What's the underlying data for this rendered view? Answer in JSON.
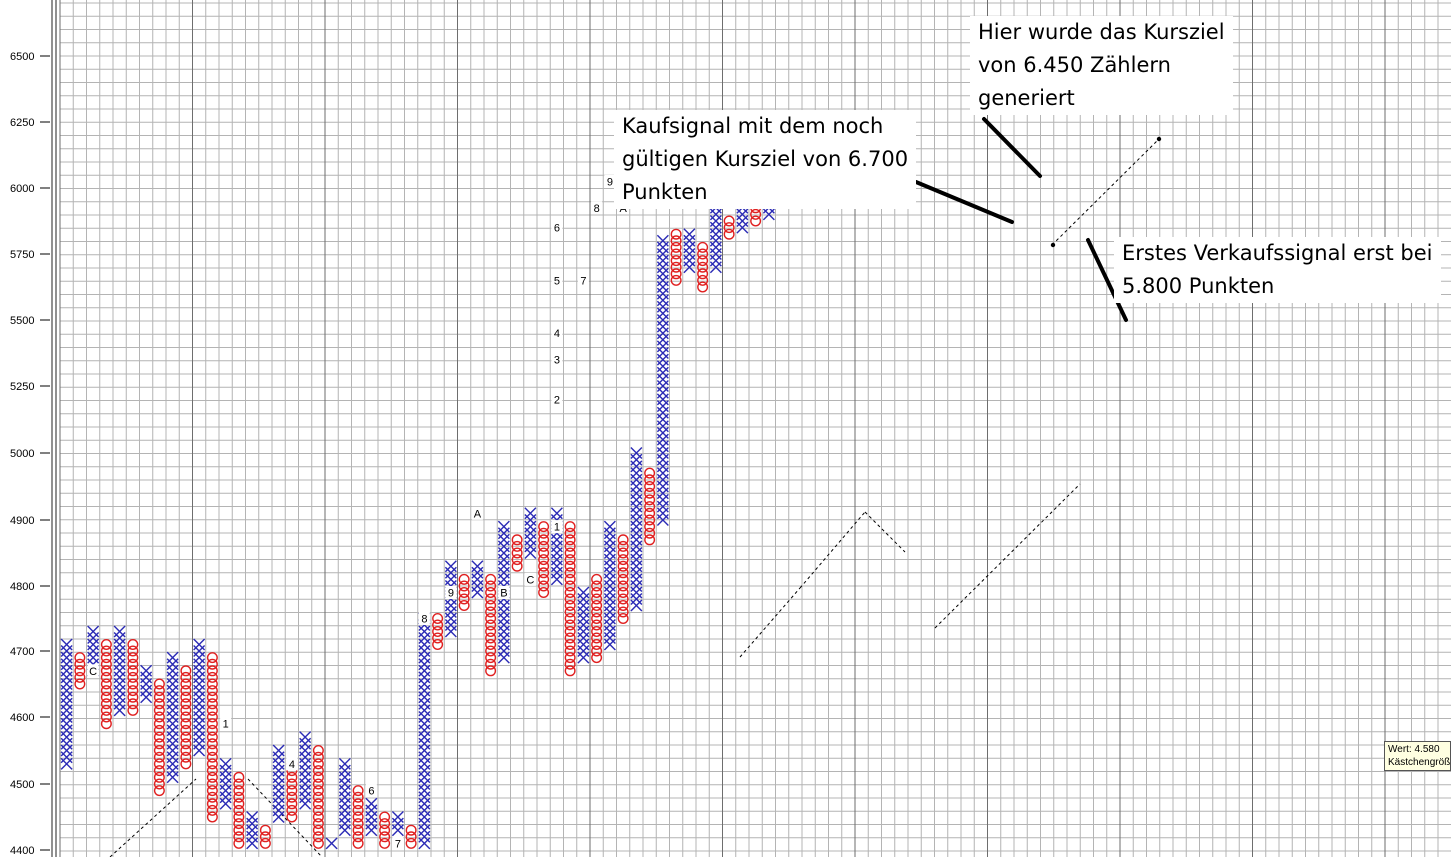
{
  "chart_data": {
    "type": "point-and-figure",
    "y_ticks": [
      "6500",
      "6250",
      "6000",
      "5750",
      "5500",
      "5250",
      "5000",
      "4900",
      "4800",
      "4700",
      "4600",
      "4500",
      "4400"
    ],
    "columns": [
      {
        "t": "X",
        "lo": 4530,
        "hi": 4710
      },
      {
        "t": "O",
        "lo": 4650,
        "hi": 4690
      },
      {
        "t": "X",
        "lo": 4670,
        "hi": 4730
      },
      {
        "t": "O",
        "lo": 4590,
        "hi": 4710
      },
      {
        "t": "X",
        "lo": 4610,
        "hi": 4730
      },
      {
        "t": "O",
        "lo": 4610,
        "hi": 4710
      },
      {
        "t": "X",
        "lo": 4630,
        "hi": 4670
      },
      {
        "t": "O",
        "lo": 4490,
        "hi": 4650
      },
      {
        "t": "X",
        "lo": 4510,
        "hi": 4690
      },
      {
        "t": "O",
        "lo": 4530,
        "hi": 4670
      },
      {
        "t": "X",
        "lo": 4550,
        "hi": 4710
      },
      {
        "t": "O",
        "lo": 4450,
        "hi": 4690
      },
      {
        "t": "X",
        "lo": 4470,
        "hi": 4530
      },
      {
        "t": "O",
        "lo": 4410,
        "hi": 4510
      },
      {
        "t": "X",
        "lo": 4410,
        "hi": 4450
      },
      {
        "t": "O",
        "lo": 4410,
        "hi": 4430
      },
      {
        "t": "X",
        "lo": 4450,
        "hi": 4550
      },
      {
        "t": "O",
        "lo": 4450,
        "hi": 4530
      },
      {
        "t": "X",
        "lo": 4470,
        "hi": 4570
      },
      {
        "t": "O",
        "lo": 4410,
        "hi": 4550
      },
      {
        "t": "X",
        "lo": 4410,
        "hi": 4410
      },
      {
        "t": "X",
        "lo": 4430,
        "hi": 4530
      },
      {
        "t": "O",
        "lo": 4410,
        "hi": 4490
      },
      {
        "t": "X",
        "lo": 4430,
        "hi": 4470
      },
      {
        "t": "O",
        "lo": 4410,
        "hi": 4450
      },
      {
        "t": "X",
        "lo": 4430,
        "hi": 4450
      },
      {
        "t": "O",
        "lo": 4410,
        "hi": 4430
      },
      {
        "t": "X",
        "lo": 4410,
        "hi": 4750
      },
      {
        "t": "O",
        "lo": 4710,
        "hi": 4750
      },
      {
        "t": "X",
        "lo": 4730,
        "hi": 4830
      },
      {
        "t": "O",
        "lo": 4770,
        "hi": 4810
      },
      {
        "t": "X",
        "lo": 4790,
        "hi": 4830
      },
      {
        "t": "O",
        "lo": 4670,
        "hi": 4810
      },
      {
        "t": "X",
        "lo": 4690,
        "hi": 4890
      },
      {
        "t": "O",
        "lo": 4830,
        "hi": 4870
      },
      {
        "t": "X",
        "lo": 4850,
        "hi": 4910
      },
      {
        "t": "O",
        "lo": 4790,
        "hi": 4890
      },
      {
        "t": "X",
        "lo": 4810,
        "hi": 4910
      },
      {
        "t": "O",
        "lo": 4670,
        "hi": 4890
      },
      {
        "t": "X",
        "lo": 4690,
        "hi": 4790
      },
      {
        "t": "O",
        "lo": 4690,
        "hi": 4810
      },
      {
        "t": "X",
        "lo": 4710,
        "hi": 4890
      },
      {
        "t": "O",
        "lo": 4750,
        "hi": 4870
      },
      {
        "t": "X",
        "lo": 4770,
        "hi": 5000
      },
      {
        "t": "O",
        "lo": 4870,
        "hi": 4975
      },
      {
        "t": "X",
        "lo": 4900,
        "hi": 5800
      },
      {
        "t": "O",
        "lo": 5650,
        "hi": 5825
      },
      {
        "t": "X",
        "lo": 5700,
        "hi": 5825
      },
      {
        "t": "O",
        "lo": 5625,
        "hi": 5775
      },
      {
        "t": "X",
        "lo": 5700,
        "hi": 6000
      },
      {
        "t": "O",
        "lo": 5825,
        "hi": 5875
      },
      {
        "t": "X",
        "lo": 5850,
        "hi": 5975
      },
      {
        "t": "O",
        "lo": 5875,
        "hi": 5975
      },
      {
        "t": "X",
        "lo": 5900,
        "hi": 6150
      }
    ],
    "markers": [
      {
        "text": "C",
        "col": 2,
        "v": 4670
      },
      {
        "text": "1",
        "col": 12,
        "v": 4590
      },
      {
        "text": "4",
        "col": 17,
        "v": 4530
      },
      {
        "text": "6",
        "col": 23,
        "v": 4490
      },
      {
        "text": "7",
        "col": 25,
        "v": 4410
      },
      {
        "text": "8",
        "col": 27,
        "v": 4750
      },
      {
        "text": "9",
        "col": 29,
        "v": 4790
      },
      {
        "text": "A",
        "col": 31,
        "v": 4910
      },
      {
        "text": "B",
        "col": 33,
        "v": 4790
      },
      {
        "text": "C",
        "col": 35,
        "v": 4810
      },
      {
        "text": "1",
        "col": 37,
        "v": 4890
      },
      {
        "text": "2",
        "col": 37,
        "v": 5200
      },
      {
        "text": "3",
        "col": 37,
        "v": 5350
      },
      {
        "text": "4",
        "col": 37,
        "v": 5450
      },
      {
        "text": "5",
        "col": 37,
        "v": 5650
      },
      {
        "text": "6",
        "col": 37,
        "v": 5850
      },
      {
        "text": "7",
        "col": 39,
        "v": 5650
      },
      {
        "text": "8",
        "col": 40,
        "v": 5925
      },
      {
        "text": "9",
        "col": 41,
        "v": 6025
      },
      {
        "text": "A",
        "col": 42,
        "v": 5925
      }
    ]
  },
  "annotations": {
    "buy_signal": [
      "Kaufsignal mit dem noch",
      "gültigen Kursziel von 6.700",
      "Punkten"
    ],
    "target": [
      "Hier wurde das Kursziel",
      "von 6.450 Zählern",
      "generiert"
    ],
    "sell_signal": [
      "Erstes Verkaufssignal erst bei",
      "5.800 Punkten"
    ]
  },
  "tooltip": {
    "line1": "Wert: 4.580",
    "line2": "Kästchengröße"
  },
  "colors": {
    "x_mark": "#2b2bb5",
    "o_mark": "#e02020",
    "grid": "#a0a0a0",
    "background": "#ffffff"
  }
}
